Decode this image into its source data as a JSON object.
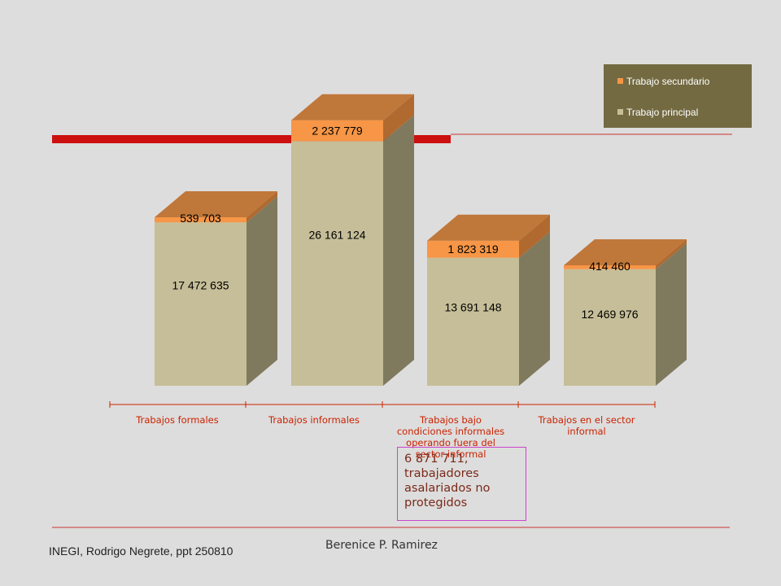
{
  "colors": {
    "background": "#dddddd",
    "front_principal": "#c6be98",
    "side_principal": "#7f7a5e",
    "front_secundario": "#f79646",
    "top_secundario": "#c0773a",
    "side_secundario": "#b06a30",
    "title_bar": "#cc1010",
    "line": "#cc3333",
    "label_text": "#cc2200",
    "legend_bg": "#736a42"
  },
  "legend": {
    "items": [
      {
        "label": "Trabajo secundario",
        "color": "#f79646"
      },
      {
        "label": "Trabajo principal",
        "color": "#c6be98"
      }
    ]
  },
  "chart_data": {
    "type": "bar",
    "stacked": true,
    "three_d": true,
    "categories": [
      "Trabajos formales",
      "Trabajos informales",
      "Trabajos bajo condiciones informales operando fuera del sector informal",
      "Trabajos en el sector informal"
    ],
    "category_lines": [
      [
        "Trabajos formales"
      ],
      [
        "Trabajos informales"
      ],
      [
        "Trabajos bajo",
        "condiciones informales",
        "operando fuera del",
        "sector informal"
      ],
      [
        "Trabajos en el sector",
        "informal"
      ]
    ],
    "series": [
      {
        "name": "Trabajo principal",
        "values": [
          17472635,
          26161124,
          13691148,
          12469976
        ],
        "labels": [
          "17 472 635",
          "26 161 124",
          "13 691 148",
          "12 469 976"
        ]
      },
      {
        "name": "Trabajo secundario",
        "values": [
          539703,
          2237779,
          1823319,
          414460
        ],
        "labels": [
          "539 703",
          "2 237 779",
          "1 823 319",
          "414 460"
        ]
      }
    ],
    "ylim": [
      0,
      30000000
    ],
    "legend_position": "top-right",
    "grid": false
  },
  "note": {
    "text": "6 871 711, trabajadores asalariados no protegidos"
  },
  "footer": {
    "source": "INEGI, Rodrigo Negrete, ppt 250810",
    "author": "Berenice P. Ramirez"
  }
}
